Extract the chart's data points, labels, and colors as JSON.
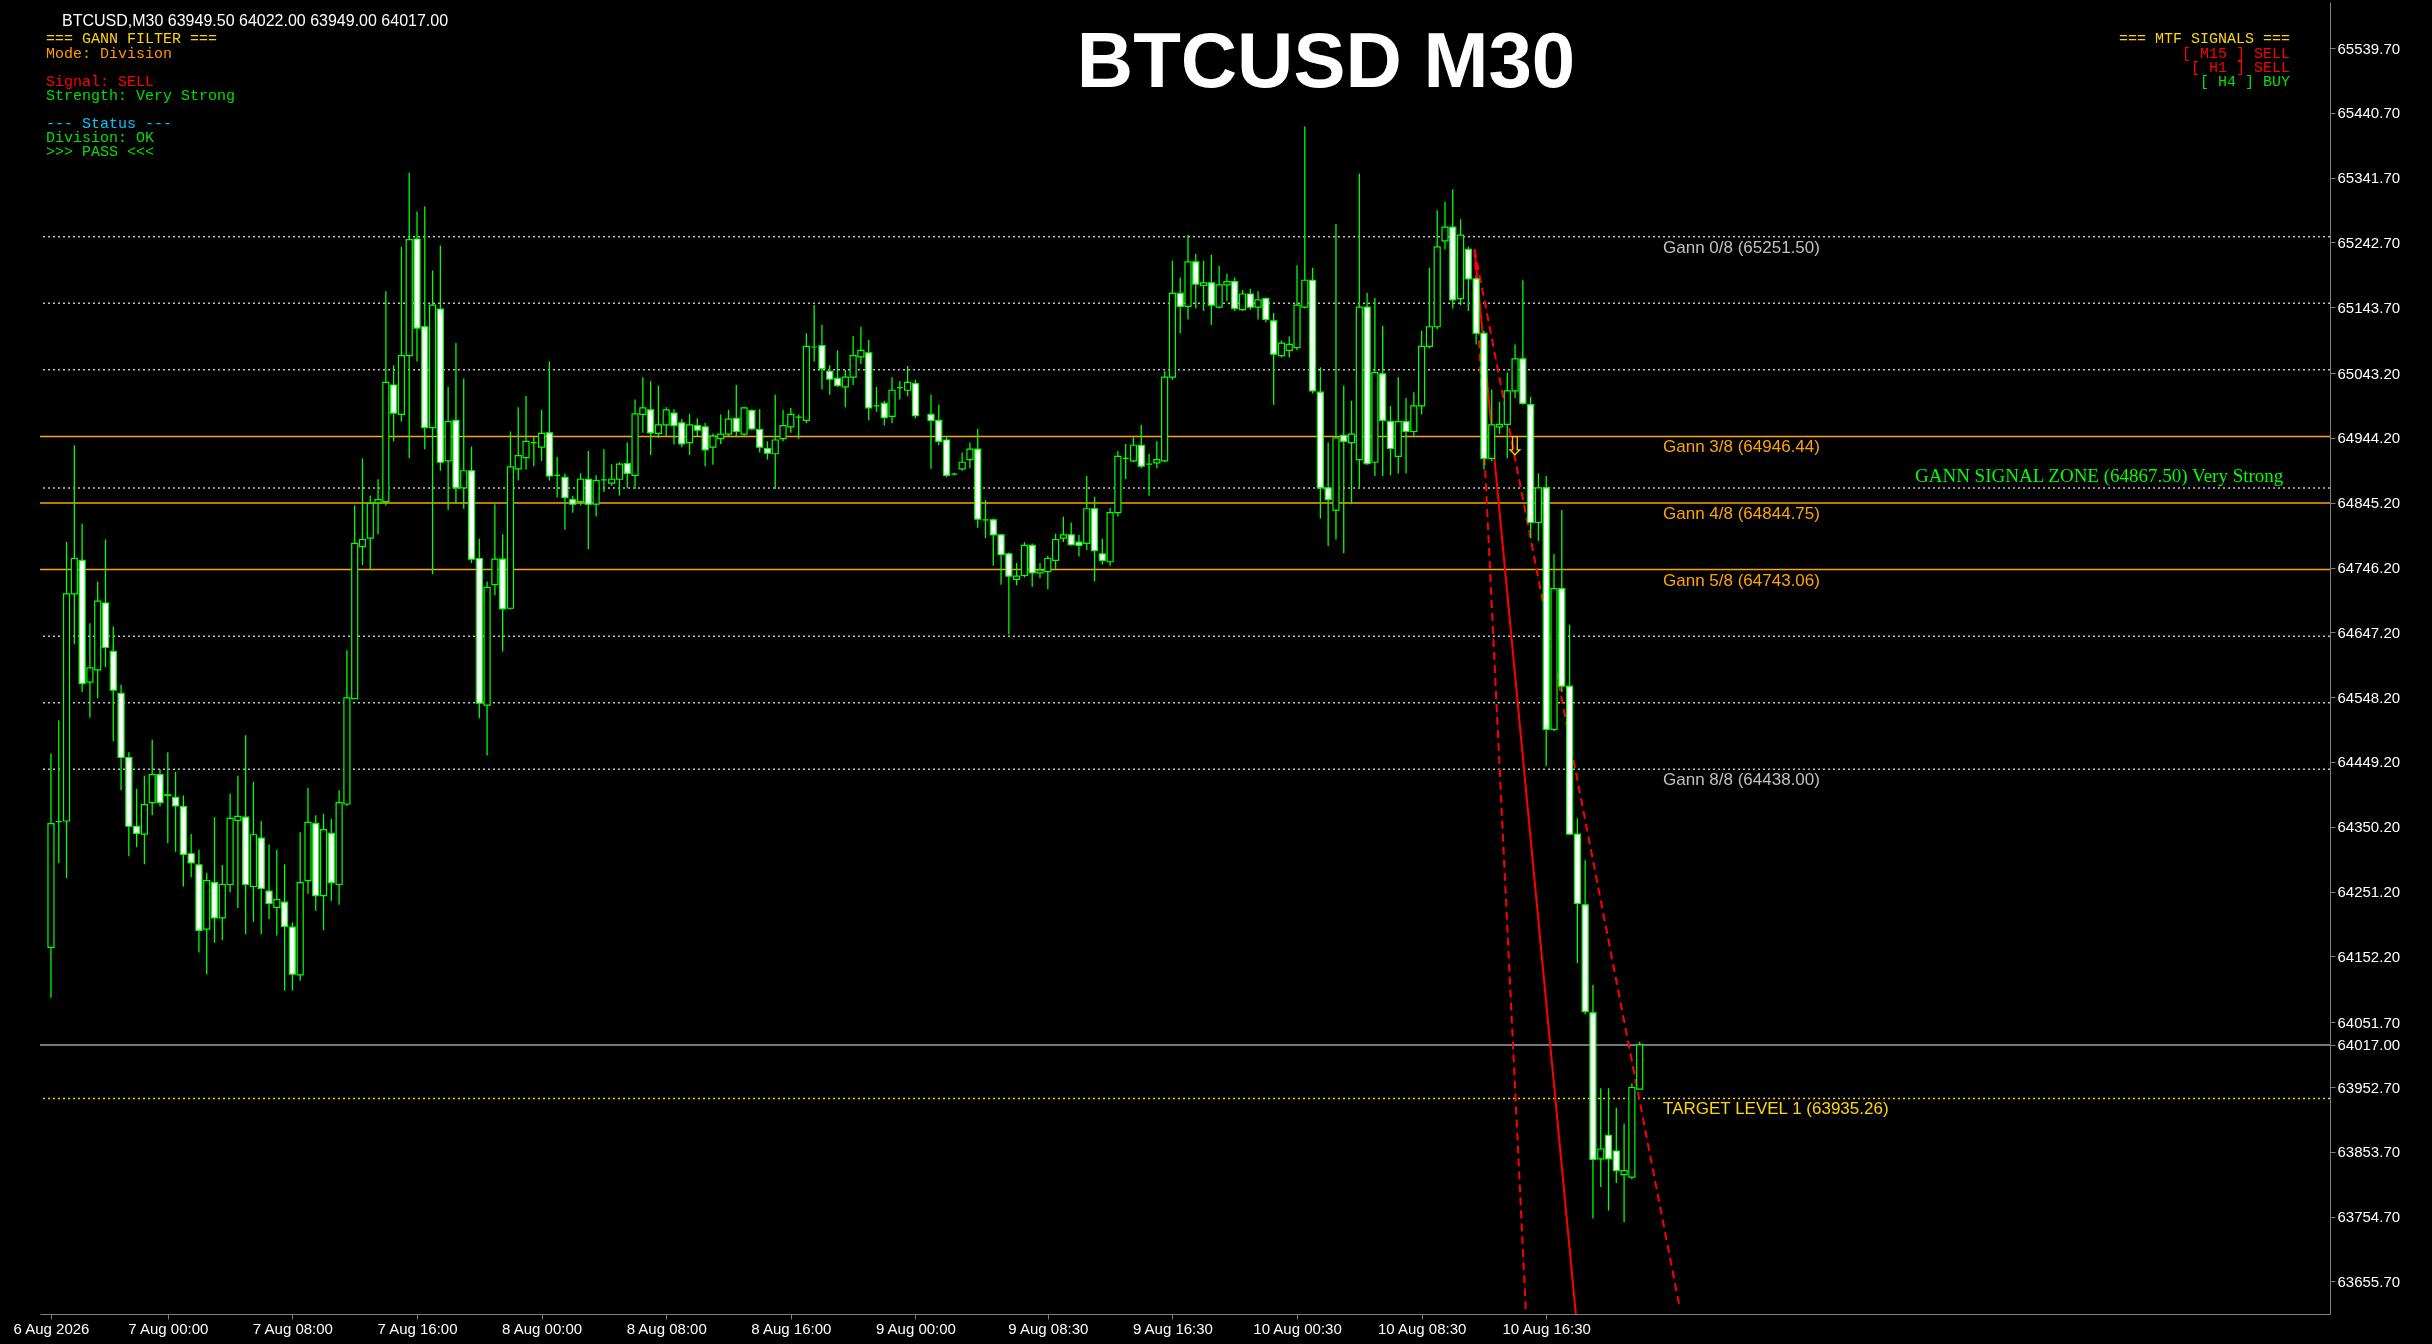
{
  "chart_data": {
    "type": "candlestick",
    "title": "BTCUSD M30",
    "subtitle": "BTCUSD,M30  63949.50 64022.00 63949.00 64017.00",
    "x": [
      "2026-08-06T16:30",
      "2026-08-06T17:00",
      "2026-08-06T17:30",
      "2026-08-06T18:00",
      "2026-08-06T18:30",
      "2026-08-06T19:00",
      "2026-08-06T19:30",
      "2026-08-06T20:00",
      "2026-08-06T20:30",
      "2026-08-06T21:00",
      "2026-08-06T21:30",
      "2026-08-06T22:00",
      "2026-08-06T22:30",
      "2026-08-06T23:00",
      "2026-08-06T23:30",
      "2026-08-07T00:00",
      "2026-08-07T00:30",
      "2026-08-07T01:00",
      "2026-08-07T01:30",
      "2026-08-07T02:00",
      "2026-08-07T02:30",
      "2026-08-07T03:00",
      "2026-08-07T03:30",
      "2026-08-07T04:00",
      "2026-08-07T04:30",
      "2026-08-07T05:00",
      "2026-08-07T05:30",
      "2026-08-07T06:00",
      "2026-08-07T06:30",
      "2026-08-07T07:00",
      "2026-08-07T07:30",
      "2026-08-07T08:00",
      "2026-08-07T08:30",
      "2026-08-07T09:00",
      "2026-08-07T09:30",
      "2026-08-07T10:00",
      "2026-08-07T10:30",
      "2026-08-07T11:00",
      "2026-08-07T11:30",
      "2026-08-07T12:00",
      "2026-08-07T12:30",
      "2026-08-07T13:00",
      "2026-08-07T13:30",
      "2026-08-07T14:00",
      "2026-08-07T14:30",
      "2026-08-07T15:00",
      "2026-08-07T15:30",
      "2026-08-07T16:00",
      "2026-08-07T16:30",
      "2026-08-07T17:00",
      "2026-08-07T17:30",
      "2026-08-07T18:00",
      "2026-08-07T18:30",
      "2026-08-07T19:00",
      "2026-08-07T19:30",
      "2026-08-07T20:00",
      "2026-08-07T20:30",
      "2026-08-07T21:00",
      "2026-08-07T21:30",
      "2026-08-07T22:00",
      "2026-08-07T22:30",
      "2026-08-07T23:00",
      "2026-08-07T23:30",
      "2026-08-08T00:00",
      "2026-08-08T00:30",
      "2026-08-08T01:00",
      "2026-08-08T01:30",
      "2026-08-08T02:00",
      "2026-08-08T02:30",
      "2026-08-08T03:00",
      "2026-08-08T03:30",
      "2026-08-08T04:00",
      "2026-08-08T04:30",
      "2026-08-08T05:00",
      "2026-08-08T05:30",
      "2026-08-08T06:00",
      "2026-08-08T06:30",
      "2026-08-08T07:00",
      "2026-08-08T07:30",
      "2026-08-08T08:00",
      "2026-08-08T08:30",
      "2026-08-08T09:00",
      "2026-08-08T09:30",
      "2026-08-08T10:00",
      "2026-08-08T10:30",
      "2026-08-08T11:00",
      "2026-08-08T11:30",
      "2026-08-08T12:00",
      "2026-08-08T12:30",
      "2026-08-08T13:00",
      "2026-08-08T13:30",
      "2026-08-08T14:00",
      "2026-08-08T14:30",
      "2026-08-08T15:00",
      "2026-08-08T15:30",
      "2026-08-08T16:00",
      "2026-08-08T16:30",
      "2026-08-08T17:00",
      "2026-08-08T17:30",
      "2026-08-08T18:00",
      "2026-08-08T18:30",
      "2026-08-08T19:00",
      "2026-08-08T19:30",
      "2026-08-08T20:00",
      "2026-08-08T20:30",
      "2026-08-08T21:00",
      "2026-08-08T21:30",
      "2026-08-08T22:00",
      "2026-08-08T22:30",
      "2026-08-08T23:00",
      "2026-08-08T23:30",
      "2026-08-09T00:00",
      "2026-08-09T01:00",
      "2026-08-09T01:30",
      "2026-08-09T02:00",
      "2026-08-09T02:30",
      "2026-08-09T03:00",
      "2026-08-09T03:30",
      "2026-08-09T04:00",
      "2026-08-09T04:30",
      "2026-08-09T05:00",
      "2026-08-09T05:30",
      "2026-08-09T06:00",
      "2026-08-09T06:30",
      "2026-08-09T07:00",
      "2026-08-09T07:30",
      "2026-08-09T08:00",
      "2026-08-09T08:30",
      "2026-08-09T09:00",
      "2026-08-09T09:30",
      "2026-08-09T10:00",
      "2026-08-09T10:30",
      "2026-08-09T11:00",
      "2026-08-09T11:30",
      "2026-08-09T12:00",
      "2026-08-09T12:30",
      "2026-08-09T13:00",
      "2026-08-09T13:30",
      "2026-08-09T14:00",
      "2026-08-09T14:30",
      "2026-08-09T15:00",
      "2026-08-09T15:30",
      "2026-08-09T16:00",
      "2026-08-09T16:30",
      "2026-08-09T17:00",
      "2026-08-09T17:30",
      "2026-08-09T18:00",
      "2026-08-09T18:30",
      "2026-08-09T19:00",
      "2026-08-09T19:30",
      "2026-08-09T20:00",
      "2026-08-09T20:30",
      "2026-08-09T21:00",
      "2026-08-09T21:30",
      "2026-08-09T22:00",
      "2026-08-09T22:30",
      "2026-08-09T23:00",
      "2026-08-09T23:30",
      "2026-08-10T00:00",
      "2026-08-10T00:30",
      "2026-08-10T01:00",
      "2026-08-10T01:30",
      "2026-08-10T02:00",
      "2026-08-10T02:30",
      "2026-08-10T03:00",
      "2026-08-10T03:30",
      "2026-08-10T04:00",
      "2026-08-10T04:30",
      "2026-08-10T05:00",
      "2026-08-10T05:30",
      "2026-08-10T06:00",
      "2026-08-10T06:30",
      "2026-08-10T07:00",
      "2026-08-10T07:30",
      "2026-08-10T08:00",
      "2026-08-10T08:30",
      "2026-08-10T09:00",
      "2026-08-10T09:30",
      "2026-08-10T10:00",
      "2026-08-10T10:30",
      "2026-08-10T11:00",
      "2026-08-10T11:30",
      "2026-08-10T12:00",
      "2026-08-10T12:30",
      "2026-08-10T13:00",
      "2026-08-10T13:30",
      "2026-08-10T14:00",
      "2026-08-10T14:30",
      "2026-08-10T15:00",
      "2026-08-10T15:30",
      "2026-08-10T16:00",
      "2026-08-10T16:30",
      "2026-08-10T17:00",
      "2026-08-10T17:30",
      "2026-08-10T18:00",
      "2026-08-10T18:30",
      "2026-08-10T19:00",
      "2026-08-10T19:30",
      "2026-08-10T20:00",
      "2026-08-10T20:30",
      "2026-08-10T21:00",
      "2026-08-10T21:30",
      "2026-08-10T22:00",
      "2026-08-10T22:30"
    ],
    "ohlc": [
      [
        64166,
        64462,
        64089,
        64355
      ],
      [
        64358,
        64513,
        64295,
        64358
      ],
      [
        64359,
        64785,
        64272,
        64706
      ],
      [
        64706,
        64933,
        64629,
        64760
      ],
      [
        64757,
        64813,
        64556,
        64569
      ],
      [
        64571,
        64661,
        64517,
        64593
      ],
      [
        64590,
        64725,
        64547,
        64695
      ],
      [
        64692,
        64789,
        64594,
        64624
      ],
      [
        64618,
        64656,
        64481,
        64559
      ],
      [
        64554,
        64567,
        64406,
        64456
      ],
      [
        64456,
        64464,
        64305,
        64351
      ],
      [
        64351,
        64408,
        64319,
        64340
      ],
      [
        64339,
        64428,
        64293,
        64384
      ],
      [
        64387,
        64483,
        64368,
        64430
      ],
      [
        64430,
        64438,
        64381,
        64387
      ],
      [
        64399,
        64464,
        64325,
        64398
      ],
      [
        64395,
        64434,
        64312,
        64382
      ],
      [
        64381,
        64398,
        64259,
        64308
      ],
      [
        64309,
        64339,
        64273,
        64295
      ],
      [
        64292,
        64315,
        64158,
        64192
      ],
      [
        64194,
        64280,
        64125,
        64268
      ],
      [
        64265,
        64365,
        64173,
        64211
      ],
      [
        64211,
        64292,
        64177,
        64262
      ],
      [
        64262,
        64401,
        64250,
        64363
      ],
      [
        64360,
        64428,
        64226,
        64366
      ],
      [
        64365,
        64490,
        64186,
        64262
      ],
      [
        64259,
        64419,
        64205,
        64338
      ],
      [
        64333,
        64359,
        64186,
        64256
      ],
      [
        64252,
        64323,
        64209,
        64233
      ],
      [
        64227,
        64315,
        64184,
        64239
      ],
      [
        64235,
        64293,
        64100,
        64198
      ],
      [
        64197,
        64204,
        64100,
        64125
      ],
      [
        64124,
        64342,
        64115,
        64265
      ],
      [
        64268,
        64410,
        64248,
        64357
      ],
      [
        64355,
        64368,
        64222,
        64245
      ],
      [
        64245,
        64370,
        64192,
        64346
      ],
      [
        64340,
        64362,
        64237,
        64265
      ],
      [
        64262,
        64406,
        64231,
        64387
      ],
      [
        64385,
        64620,
        64382,
        64547
      ],
      [
        64546,
        64841,
        64546,
        64783
      ],
      [
        64778,
        64913,
        64750,
        64789
      ],
      [
        64791,
        64856,
        64744,
        64844
      ],
      [
        64845,
        64881,
        64797,
        64850
      ],
      [
        64847,
        65168,
        64841,
        65029
      ],
      [
        65025,
        65055,
        64939,
        64982
      ],
      [
        64980,
        65236,
        64969,
        65070
      ],
      [
        65070,
        65349,
        64913,
        65247
      ],
      [
        65248,
        65290,
        65061,
        65112
      ],
      [
        65114,
        65298,
        64927,
        64960
      ],
      [
        64960,
        65200,
        64736,
        65147
      ],
      [
        65141,
        65238,
        64894,
        64907
      ],
      [
        64909,
        65022,
        64834,
        64969
      ],
      [
        64971,
        65089,
        64844,
        64868
      ],
      [
        64868,
        65035,
        64836,
        64894
      ],
      [
        64894,
        64931,
        64753,
        64759
      ],
      [
        64760,
        64790,
        64516,
        64539
      ],
      [
        64536,
        64725,
        64459,
        64716
      ],
      [
        64720,
        64843,
        64704,
        64759
      ],
      [
        64759,
        64797,
        64618,
        64683
      ],
      [
        64684,
        64954,
        64682,
        64900
      ],
      [
        64897,
        64991,
        64879,
        64917
      ],
      [
        64914,
        65008,
        64896,
        64939
      ],
      [
        64937,
        64945,
        64901,
        64937
      ],
      [
        64930,
        64987,
        64909,
        64951
      ],
      [
        64952,
        65061,
        64879,
        64886
      ],
      [
        64887,
        64915,
        64853,
        64887
      ],
      [
        64884,
        64890,
        64804,
        64853
      ],
      [
        64850,
        64856,
        64830,
        64843
      ],
      [
        64847,
        64890,
        64841,
        64881
      ],
      [
        64881,
        64924,
        64774,
        64843
      ],
      [
        64843,
        64887,
        64824,
        64879
      ],
      [
        64880,
        64927,
        64862,
        64880
      ],
      [
        64875,
        64904,
        64871,
        64881
      ],
      [
        64881,
        64907,
        64856,
        64904
      ],
      [
        64905,
        64937,
        64868,
        64890
      ],
      [
        64887,
        65003,
        64866,
        64981
      ],
      [
        64980,
        65037,
        64952,
        64990
      ],
      [
        64987,
        65031,
        64918,
        64952
      ],
      [
        64951,
        65024,
        64944,
        64964
      ],
      [
        64964,
        64991,
        64947,
        64987
      ],
      [
        64982,
        64988,
        64934,
        64963
      ],
      [
        64967,
        64973,
        64930,
        64935
      ],
      [
        64937,
        64981,
        64918,
        64964
      ],
      [
        64963,
        64974,
        64947,
        64956
      ],
      [
        64961,
        64967,
        64901,
        64926
      ],
      [
        64930,
        64951,
        64903,
        64947
      ],
      [
        64943,
        64980,
        64935,
        64950
      ],
      [
        64950,
        64987,
        64947,
        64973
      ],
      [
        64974,
        65025,
        64945,
        64954
      ],
      [
        64950,
        64992,
        64947,
        64990
      ],
      [
        64986,
        64988,
        64956,
        64958
      ],
      [
        64957,
        64988,
        64922,
        64930
      ],
      [
        64928,
        64939,
        64911,
        64921
      ],
      [
        64920,
        65010,
        64866,
        64941
      ],
      [
        64943,
        64987,
        64939,
        64963
      ],
      [
        64961,
        64990,
        64952,
        64980
      ],
      [
        64976,
        64980,
        64943,
        64976
      ],
      [
        64971,
        65104,
        64967,
        65084
      ],
      [
        65083,
        65147,
        65061,
        65083
      ],
      [
        65085,
        65117,
        65018,
        65050
      ],
      [
        65046,
        65055,
        65010,
        65034
      ],
      [
        65035,
        65078,
        65022,
        65024
      ],
      [
        65022,
        65048,
        64991,
        65037
      ],
      [
        65037,
        65100,
        65025,
        65070
      ],
      [
        65068,
        65114,
        65057,
        65078
      ],
      [
        65074,
        65094,
        64971,
        64990
      ],
      [
        64993,
        65022,
        64984,
        64993
      ],
      [
        64997,
        65001,
        64963,
        64975
      ],
      [
        64977,
        65037,
        64967,
        65017
      ],
      [
        65021,
        65031,
        65003,
        65021
      ],
      [
        65017,
        65054,
        65008,
        65029
      ],
      [
        65027,
        65033,
        64974,
        64978
      ],
      [
        64980,
        65010,
        64897,
        64971
      ],
      [
        64971,
        64995,
        64933,
        64939
      ],
      [
        64941,
        64947,
        64884,
        64887
      ],
      [
        64889,
        64891,
        64887,
        64889
      ],
      [
        64897,
        64922,
        64894,
        64907
      ],
      [
        64911,
        64937,
        64898,
        64927
      ],
      [
        64927,
        64958,
        64807,
        64820
      ],
      [
        64819,
        64849,
        64791,
        64819
      ],
      [
        64819,
        64821,
        64749,
        64796
      ],
      [
        64796,
        64797,
        64720,
        64766
      ],
      [
        64767,
        64769,
        64644,
        64733
      ],
      [
        64728,
        64753,
        64719,
        64733
      ],
      [
        64734,
        64785,
        64731,
        64780
      ],
      [
        64780,
        64783,
        64717,
        64738
      ],
      [
        64738,
        64753,
        64730,
        64742
      ],
      [
        64740,
        64764,
        64713,
        64760
      ],
      [
        64757,
        64798,
        64744,
        64789
      ],
      [
        64791,
        64824,
        64785,
        64796
      ],
      [
        64796,
        64815,
        64780,
        64781
      ],
      [
        64785,
        64796,
        64763,
        64780
      ],
      [
        64783,
        64886,
        64773,
        64836
      ],
      [
        64836,
        64854,
        64725,
        64772
      ],
      [
        64767,
        64790,
        64751,
        64757
      ],
      [
        64755,
        64837,
        64749,
        64830
      ],
      [
        64830,
        64924,
        64824,
        64916
      ],
      [
        64913,
        64935,
        64881,
        64913
      ],
      [
        64909,
        64945,
        64907,
        64933
      ],
      [
        64933,
        64964,
        64898,
        64901
      ],
      [
        64904,
        64920,
        64856,
        64904
      ],
      [
        64906,
        64939,
        64898,
        64911
      ],
      [
        64909,
        65046,
        64907,
        65037
      ],
      [
        65037,
        65215,
        65033,
        65165
      ],
      [
        65165,
        65189,
        65104,
        65145
      ],
      [
        65145,
        65254,
        65125,
        65213
      ],
      [
        65213,
        65225,
        65142,
        65179
      ],
      [
        65177,
        65215,
        65138,
        65181
      ],
      [
        65181,
        65224,
        65117,
        65147
      ],
      [
        65144,
        65207,
        65142,
        65178
      ],
      [
        65178,
        65195,
        65153,
        65183
      ],
      [
        65183,
        65189,
        65138,
        65142
      ],
      [
        65140,
        65170,
        65138,
        65164
      ],
      [
        65164,
        65172,
        65140,
        65144
      ],
      [
        65144,
        65168,
        65125,
        65155
      ],
      [
        65157,
        65159,
        65121,
        65125
      ],
      [
        65123,
        65135,
        64995,
        65072
      ],
      [
        65070,
        65093,
        65067,
        65089
      ],
      [
        65078,
        65099,
        65067,
        65087
      ],
      [
        65082,
        65208,
        65078,
        65147
      ],
      [
        65144,
        65420,
        65142,
        65185
      ],
      [
        65185,
        65204,
        65012,
        65016
      ],
      [
        65014,
        65052,
        64821,
        64868
      ],
      [
        64868,
        64937,
        64779,
        64850
      ],
      [
        64834,
        65271,
        64789,
        64944
      ],
      [
        64948,
        65024,
        64768,
        64939
      ],
      [
        64937,
        65001,
        64843,
        64950
      ],
      [
        64911,
        65348,
        64868,
        65144
      ],
      [
        65144,
        65166,
        64903,
        64905
      ],
      [
        64907,
        65158,
        64886,
        65044
      ],
      [
        65042,
        65115,
        64886,
        64971
      ],
      [
        64969,
        64993,
        64887,
        64928
      ],
      [
        64916,
        65037,
        64890,
        64969
      ],
      [
        64969,
        65005,
        64890,
        64954
      ],
      [
        64954,
        65014,
        64945,
        64993
      ],
      [
        64993,
        65108,
        64980,
        65084
      ],
      [
        65084,
        65204,
        65081,
        65114
      ],
      [
        65114,
        65292,
        65110,
        65236
      ],
      [
        65245,
        65305,
        65232,
        65266
      ],
      [
        65266,
        65324,
        65142,
        65155
      ],
      [
        65157,
        65278,
        65147,
        65254
      ],
      [
        65232,
        65236,
        65138,
        65187
      ],
      [
        65187,
        65189,
        65087,
        65104
      ],
      [
        65104,
        65108,
        64896,
        64913
      ],
      [
        64913,
        65018,
        64909,
        64964
      ],
      [
        64961,
        64999,
        64950,
        64965
      ],
      [
        64965,
        65044,
        64913,
        65016
      ],
      [
        65016,
        65087,
        65005,
        65065
      ],
      [
        65065,
        65185,
        64995,
        64997
      ],
      [
        64995,
        65007,
        64791,
        64815
      ],
      [
        64815,
        64890,
        64787,
        64868
      ],
      [
        64868,
        64886,
        64443,
        64499
      ],
      [
        64499,
        64767,
        64496,
        64714
      ],
      [
        64714,
        64834,
        64556,
        64565
      ],
      [
        64565,
        64659,
        64338,
        64339
      ],
      [
        64339,
        64363,
        64142,
        64233
      ],
      [
        64231,
        64299,
        64064,
        64068
      ],
      [
        64066,
        64109,
        63752,
        63842
      ],
      [
        63843,
        63951,
        63800,
        63858
      ],
      [
        63879,
        63951,
        63764,
        63843
      ],
      [
        63855,
        63921,
        63806,
        63825
      ],
      [
        63819,
        63897,
        63746,
        63825
      ],
      [
        63815,
        63958,
        63812,
        63952
      ],
      [
        63949.5,
        64022,
        63949,
        64017
      ]
    ],
    "series": [
      {
        "type": "line",
        "x": [
          "2026-08-10T11:54",
          "2026-08-10T18:24"
        ],
        "values": [
          65232,
          63606
        ],
        "color": "#ff0000",
        "line_style": "solid"
      },
      {
        "type": "line",
        "x": [
          "2026-08-10T11:54",
          "2026-08-10T15:12"
        ],
        "values": [
          65232,
          63606
        ],
        "color": "#ff0000",
        "line_style": "dashed"
      },
      {
        "type": "line",
        "x": [
          "2026-08-10T11:54",
          "2026-08-11T01:03"
        ],
        "values": [
          65232,
          63618
        ],
        "color": "#ff0000",
        "line_style": "dashed"
      }
    ],
    "xlim": [
      "2026-08-06T16:07",
      "2026-08-12T18:30"
    ],
    "ylim": [
      63606,
      65610
    ],
    "xticks": [
      {
        "value": "2026-08-06T16:30",
        "label": "6 Aug 2026"
      },
      {
        "value": "2026-08-07T00:00",
        "label": "7 Aug 00:00"
      },
      {
        "value": "2026-08-07T08:00",
        "label": "7 Aug 08:00"
      },
      {
        "value": "2026-08-07T16:00",
        "label": "7 Aug 16:00"
      },
      {
        "value": "2026-08-08T00:00",
        "label": "8 Aug 00:00"
      },
      {
        "value": "2026-08-08T08:00",
        "label": "8 Aug 08:00"
      },
      {
        "value": "2026-08-08T16:00",
        "label": "8 Aug 16:00"
      },
      {
        "value": "2026-08-09T00:00",
        "label": "9 Aug 00:00"
      },
      {
        "value": "2026-08-09T08:30",
        "label": "9 Aug 08:30"
      },
      {
        "value": "2026-08-09T16:30",
        "label": "9 Aug 16:30"
      },
      {
        "value": "2026-08-10T00:30",
        "label": "10 Aug 00:30"
      },
      {
        "value": "2026-08-10T08:30",
        "label": "10 Aug 08:30"
      },
      {
        "value": "2026-08-10T16:30",
        "label": "10 Aug 16:30"
      }
    ],
    "yticks": [
      {
        "value": 65539.7,
        "label": "65539.70"
      },
      {
        "value": 65440.7,
        "label": "65440.70"
      },
      {
        "value": 65341.7,
        "label": "65341.70"
      },
      {
        "value": 65242.7,
        "label": "65242.70"
      },
      {
        "value": 65143.7,
        "label": "65143.70"
      },
      {
        "value": 65043.2,
        "label": "65043.20"
      },
      {
        "value": 64944.2,
        "label": "64944.20"
      },
      {
        "value": 64845.2,
        "label": "64845.20"
      },
      {
        "value": 64746.2,
        "label": "64746.20"
      },
      {
        "value": 64647.2,
        "label": "64647.20"
      },
      {
        "value": 64548.2,
        "label": "64548.20"
      },
      {
        "value": 64449.2,
        "label": "64449.20"
      },
      {
        "value": 64350.2,
        "label": "64350.20"
      },
      {
        "value": 64251.2,
        "label": "64251.20"
      },
      {
        "value": 64152.2,
        "label": "64152.20"
      },
      {
        "value": 64051.7,
        "label": "64051.70"
      },
      {
        "value": 64017,
        "label": "64017.00"
      },
      {
        "value": 63952.7,
        "label": "63952.70"
      },
      {
        "value": 63853.7,
        "label": "63853.70"
      },
      {
        "value": 63754.7,
        "label": "63754.70"
      },
      {
        "value": 63655.7,
        "label": "63655.70"
      }
    ],
    "ref_lines": [
      {
        "axis": "y",
        "value": 65251.5,
        "label": "Gann 0/8 (65251.50)",
        "color": "#c0c0c0",
        "line_style": "dotted"
      },
      {
        "axis": "y",
        "value": 65149.81,
        "color": "#c0c0c0",
        "line_style": "dotted"
      },
      {
        "axis": "y",
        "value": 65048.13,
        "color": "#c0c0c0",
        "line_style": "dotted"
      },
      {
        "axis": "y",
        "value": 64946.44,
        "label": "Gann 3/8 (64946.44)",
        "color": "#ffa500",
        "line_style": "solid"
      },
      {
        "axis": "y",
        "value": 64867.5,
        "color": "#c0c0c0",
        "line_style": "dotted"
      },
      {
        "axis": "y",
        "value": 64844.75,
        "label": "Gann 4/8 (64844.75)",
        "color": "#ffa500",
        "line_style": "solid"
      },
      {
        "axis": "y",
        "value": 64743.06,
        "label": "Gann 5/8 (64743.06)",
        "color": "#ffa500",
        "line_style": "solid"
      },
      {
        "axis": "y",
        "value": 64641.38,
        "color": "#c0c0c0",
        "line_style": "dotted"
      },
      {
        "axis": "y",
        "value": 64539.69,
        "color": "#c0c0c0",
        "line_style": "dotted"
      },
      {
        "axis": "y",
        "value": 64438.0,
        "label": "Gann 8/8 (64438.00)",
        "color": "#c0c0c0",
        "line_style": "dotted"
      },
      {
        "axis": "y",
        "value": 63935.26,
        "label": "TARGET LEVEL 1 (63935.26)",
        "color": "#ffd700",
        "line_style": "dotted"
      },
      {
        "axis": "y",
        "value": 64017,
        "color": "#a0a0a0",
        "line_style": "solid"
      }
    ],
    "annotations": [
      "=== GANN FILTER ===",
      "Mode: Division",
      "Signal: SELL",
      "Strength: Very Strong",
      "--- Status ---",
      "Division: OK",
      ">>> PASS <<<",
      "=== MTF SIGNALS ===",
      "[ M15 ]   SELL",
      "[ H1 ]   SELL",
      "[ H4 ]   BUY",
      {
        "text": "GANN SIGNAL ZONE (64867.50) Very Strong",
        "x": "2026-08-12T04:00",
        "y": 64867.5
      },
      {
        "text": "⇩",
        "x": "2026-08-10T14:30",
        "y": 64930
      }
    ],
    "grid": false
  }
}
